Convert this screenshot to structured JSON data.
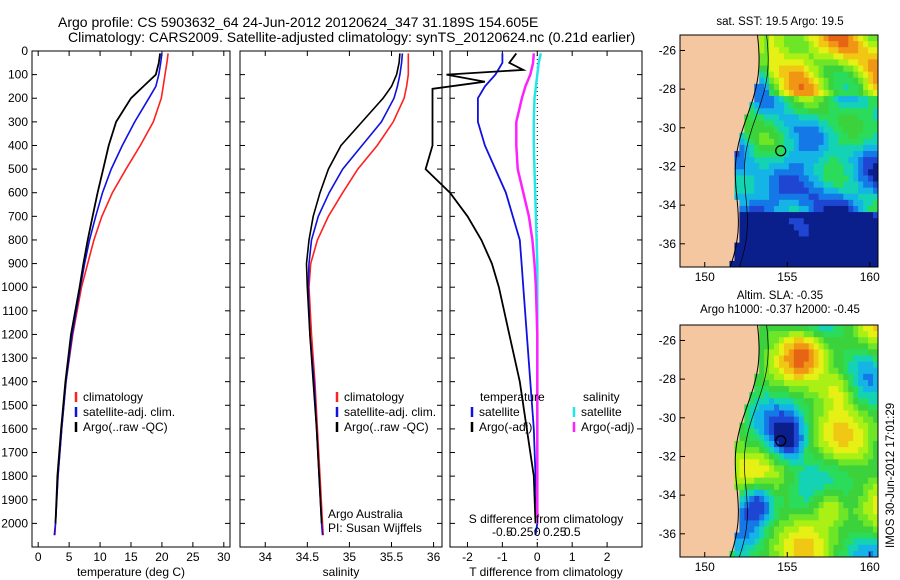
{
  "header": {
    "line1": "Argo profile: CS 5903632_64 24-Jun-2012 20120624_347 31.189S 154.605E",
    "line2": "Climatology: CARS2009. Satellite-adjusted climatology: synTS_20120624.nc (0.21d earlier)"
  },
  "colors": {
    "climatology": "#ff2020",
    "satellite_adj": "#1010e0",
    "argo": "#000000",
    "sal_satellite": "#20e8e8",
    "sal_argo": "#ff20ff",
    "land": "#f5c7a0"
  },
  "chart_data": [
    {
      "type": "line",
      "panel": "temperature",
      "xlabel": "temperature (deg C)",
      "xlim": [
        -1,
        31
      ],
      "xticks": [
        0,
        5,
        10,
        15,
        20,
        25,
        30
      ],
      "ylim": [
        2100,
        0
      ],
      "yticks": [
        0,
        100,
        200,
        300,
        400,
        500,
        600,
        700,
        800,
        900,
        1000,
        1100,
        1200,
        1300,
        1400,
        1500,
        1600,
        1700,
        1800,
        1900,
        2000
      ],
      "legend": [
        "climatology",
        "satellite-adj. clim.",
        "Argo(..raw -QC)"
      ],
      "series": [
        {
          "name": "climatology",
          "depth": [
            10,
            50,
            100,
            150,
            200,
            300,
            400,
            500,
            600,
            700,
            800,
            900,
            1000,
            1200,
            1400,
            1600,
            1800,
            2000,
            2050
          ],
          "values": [
            21,
            20.8,
            20.5,
            20.2,
            19.9,
            18.6,
            16.5,
            14.2,
            12,
            10.3,
            9,
            8,
            7,
            5.6,
            4.5,
            3.8,
            3.2,
            2.8,
            2.7
          ]
        },
        {
          "name": "satellite-adj. clim.",
          "depth": [
            10,
            50,
            100,
            150,
            200,
            300,
            400,
            500,
            600,
            700,
            800,
            900,
            1000,
            1200,
            1400,
            1600,
            1800,
            2000,
            2050
          ],
          "values": [
            20,
            19.8,
            19.5,
            19,
            17.9,
            15.6,
            13.6,
            11.8,
            10.4,
            9.3,
            8.3,
            7.5,
            6.8,
            5.5,
            4.5,
            3.8,
            3.2,
            2.8,
            2.6
          ]
        },
        {
          "name": "Argo(..raw -QC)",
          "depth": [
            10,
            50,
            100,
            150,
            200,
            300,
            400,
            500,
            600,
            700,
            800,
            900,
            1000,
            1200,
            1400,
            1600,
            1800,
            2000
          ],
          "values": [
            19.7,
            19.5,
            19,
            17,
            15,
            12.6,
            11.4,
            10.5,
            9.6,
            8.8,
            8,
            7.3,
            6.7,
            5.3,
            4.4,
            3.7,
            3.1,
            2.8
          ]
        }
      ]
    },
    {
      "type": "line",
      "panel": "salinity",
      "xlabel": "salinity",
      "xlim": [
        33.7,
        36.1
      ],
      "xticks": [
        34,
        34.5,
        35,
        35.5,
        36
      ],
      "ylim": [
        2100,
        0
      ],
      "legend": [
        "climatology",
        "satellite-adj. clim.",
        "Argo(..raw -QC)"
      ],
      "annotations": [
        "Argo Australia",
        "PI: Susan Wijffels"
      ],
      "series": [
        {
          "name": "climatology",
          "depth": [
            10,
            50,
            100,
            150,
            200,
            300,
            400,
            500,
            600,
            700,
            800,
            900,
            1000,
            1200,
            1400,
            1600,
            1800,
            2000,
            2050
          ],
          "values": [
            35.7,
            35.7,
            35.7,
            35.68,
            35.65,
            35.52,
            35.33,
            35.1,
            34.92,
            34.75,
            34.62,
            34.54,
            34.52,
            34.55,
            34.59,
            34.62,
            34.65,
            34.68,
            34.69
          ]
        },
        {
          "name": "satellite-adj. clim.",
          "depth": [
            10,
            50,
            100,
            150,
            200,
            300,
            400,
            500,
            600,
            700,
            800,
            900,
            1000,
            1200,
            1400,
            1600,
            1800,
            2000,
            2050
          ],
          "values": [
            35.63,
            35.62,
            35.6,
            35.57,
            35.53,
            35.38,
            35.15,
            34.92,
            34.76,
            34.63,
            34.55,
            34.52,
            34.51,
            34.53,
            34.58,
            34.61,
            34.64,
            34.67,
            34.68
          ]
        },
        {
          "name": "Argo(..raw -QC)",
          "depth": [
            10,
            50,
            100,
            150,
            200,
            300,
            400,
            500,
            600,
            700,
            800,
            900,
            1000,
            1200,
            1400,
            1600,
            1800,
            2000
          ],
          "values": [
            35.6,
            35.59,
            35.56,
            35.5,
            35.4,
            35.15,
            34.9,
            34.75,
            34.65,
            34.57,
            34.52,
            34.49,
            34.5,
            34.53,
            34.57,
            34.61,
            34.64,
            34.67
          ]
        }
      ]
    },
    {
      "type": "line",
      "panel": "difference",
      "xlabel": "T difference from climatology",
      "xlabel_top": "S difference from climatology",
      "xlim": [
        -2.5,
        3
      ],
      "xticks": [
        -2,
        -1,
        0,
        1,
        2
      ],
      "sticks": [
        -0.5,
        -0.25,
        0,
        0.25,
        0.5
      ],
      "stick_labels": [
        "-0.5",
        "-0.25",
        "0",
        "0.25",
        "0.5"
      ],
      "ylim": [
        2100,
        0
      ],
      "legend": {
        "temperature": "temperature",
        "salinity": "salinity",
        "t_sat": "satellite",
        "t_argo": "Argo(-adj)",
        "s_sat": "satellite",
        "s_argo": "Argo(-adj)"
      },
      "series": [
        {
          "name": "temperature satellite",
          "depth": [
            10,
            50,
            100,
            150,
            200,
            300,
            400,
            500,
            600,
            700,
            800,
            900,
            1000,
            1200,
            1400,
            1600,
            1800,
            2000,
            2050
          ],
          "values": [
            -1,
            -1,
            -1.2,
            -1.5,
            -1.7,
            -1.7,
            -1.5,
            -1.2,
            -0.9,
            -0.7,
            -0.5,
            -0.45,
            -0.4,
            -0.3,
            -0.2,
            -0.1,
            -0.05,
            0,
            -0.05
          ]
        },
        {
          "name": "temperature Argo(-adj)",
          "depth": [
            10,
            50,
            80,
            100,
            130,
            160,
            200,
            300,
            400,
            500,
            600,
            700,
            800,
            900,
            1000,
            1200,
            1400,
            1600,
            1800,
            2000
          ],
          "values": [
            -0.6,
            -0.8,
            -0.4,
            -2.6,
            -1.5,
            -3,
            -3,
            -3,
            -3,
            -3.2,
            -2.5,
            -2,
            -1.6,
            -1.3,
            -1.1,
            -0.8,
            -0.5,
            -0.3,
            -0.1,
            -0.05
          ]
        },
        {
          "name": "salinity satellite",
          "depth": [
            10,
            50,
            100,
            150,
            200,
            300,
            400,
            500,
            600,
            700,
            800,
            900,
            1000,
            1200,
            1400,
            1600,
            1800,
            2000
          ],
          "values": [
            0.05,
            0.02,
            0,
            -0.02,
            -0.04,
            -0.05,
            -0.05,
            -0.04,
            -0.03,
            -0.02,
            -0.01,
            0,
            0,
            0,
            0,
            0,
            0,
            0
          ]
        },
        {
          "name": "salinity Argo(-adj)",
          "depth": [
            10,
            50,
            100,
            150,
            200,
            300,
            400,
            500,
            600,
            700,
            800,
            900,
            1000,
            1200,
            1400,
            1600,
            1800,
            2000
          ],
          "values": [
            -0.05,
            -0.06,
            -0.1,
            -0.17,
            -0.22,
            -0.3,
            -0.3,
            -0.28,
            -0.2,
            -0.12,
            -0.07,
            -0.04,
            -0.02,
            0,
            0,
            0,
            0,
            0
          ]
        }
      ]
    },
    {
      "type": "heatmap",
      "panel": "map-sst",
      "title": "sat. SST: 19.5 Argo: 19.5",
      "xticks": [
        150,
        155,
        160
      ],
      "yticks": [
        -26,
        -28,
        -30,
        -32,
        -34,
        -36
      ]
    },
    {
      "type": "heatmap",
      "panel": "map-sla",
      "title_line1": "Altim. SLA: -0.35",
      "title_line2": "Argo h1000: -0.37 h2000: -0.45",
      "xticks": [
        150,
        155,
        160
      ],
      "yticks": [
        -26,
        -28,
        -30,
        -32,
        -34,
        -36
      ]
    }
  ],
  "footer_stamp": "IMOS 30-Jun-2012 17:01:29"
}
